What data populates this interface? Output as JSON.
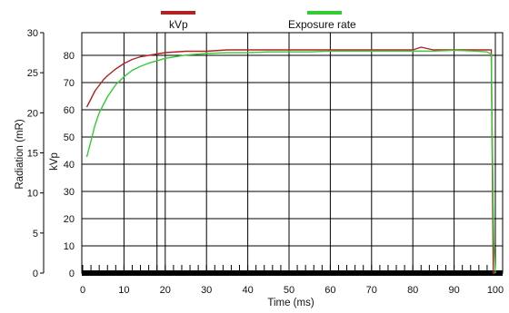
{
  "chart_data": {
    "type": "line",
    "x": {
      "label": "Time (ms)",
      "range": [
        0,
        100
      ],
      "ticks": [
        0,
        10,
        20,
        30,
        40,
        50,
        60,
        70,
        80,
        90,
        100
      ]
    },
    "y_left": {
      "label": "Radiation (mR)",
      "range": [
        0,
        30
      ],
      "ticks": [
        0,
        5,
        10,
        15,
        20,
        25,
        30
      ]
    },
    "y_inner": {
      "label": "kVp",
      "range": [
        0,
        80
      ],
      "ticks": [
        0,
        10,
        20,
        30,
        40,
        50,
        60,
        70,
        80
      ]
    },
    "grid": "vertical-and-horizontal",
    "legend_position": "top",
    "series": [
      {
        "name": "kVp",
        "color": "#b22222",
        "axis": "kVp",
        "x": [
          1,
          2,
          3,
          4,
          5,
          6,
          8,
          10,
          12,
          14,
          16,
          18,
          20,
          25,
          30,
          35,
          40,
          45,
          50,
          55,
          60,
          65,
          70,
          75,
          80,
          82,
          85,
          90,
          95,
          98,
          99,
          99.5,
          100
        ],
        "y": [
          61,
          64,
          67,
          69,
          71,
          72.5,
          75,
          77,
          78.5,
          79.5,
          80,
          80.5,
          81,
          81.5,
          81.5,
          82,
          82,
          82,
          82,
          82,
          82,
          82,
          82,
          82,
          82,
          83,
          82,
          82,
          82,
          82,
          82,
          0,
          0
        ]
      },
      {
        "name": "Exposure rate",
        "color": "#33cc33",
        "axis": "Radiation (mR)",
        "x": [
          1,
          2,
          3,
          4,
          5,
          6,
          8,
          10,
          12,
          14,
          16,
          18,
          20,
          25,
          30,
          35,
          40,
          45,
          50,
          55,
          60,
          65,
          70,
          75,
          80,
          85,
          90,
          95,
          98,
          99,
          99.3,
          99.6,
          100
        ],
        "y": [
          14.5,
          16.5,
          18.5,
          20,
          21,
          22,
          23.5,
          24.5,
          25.3,
          25.8,
          26.2,
          26.5,
          26.8,
          27.2,
          27.4,
          27.5,
          27.5,
          27.6,
          27.6,
          27.6,
          27.7,
          27.7,
          27.7,
          27.7,
          27.7,
          27.7,
          27.8,
          27.7,
          27.6,
          27.3,
          15,
          4,
          0
        ]
      }
    ]
  }
}
